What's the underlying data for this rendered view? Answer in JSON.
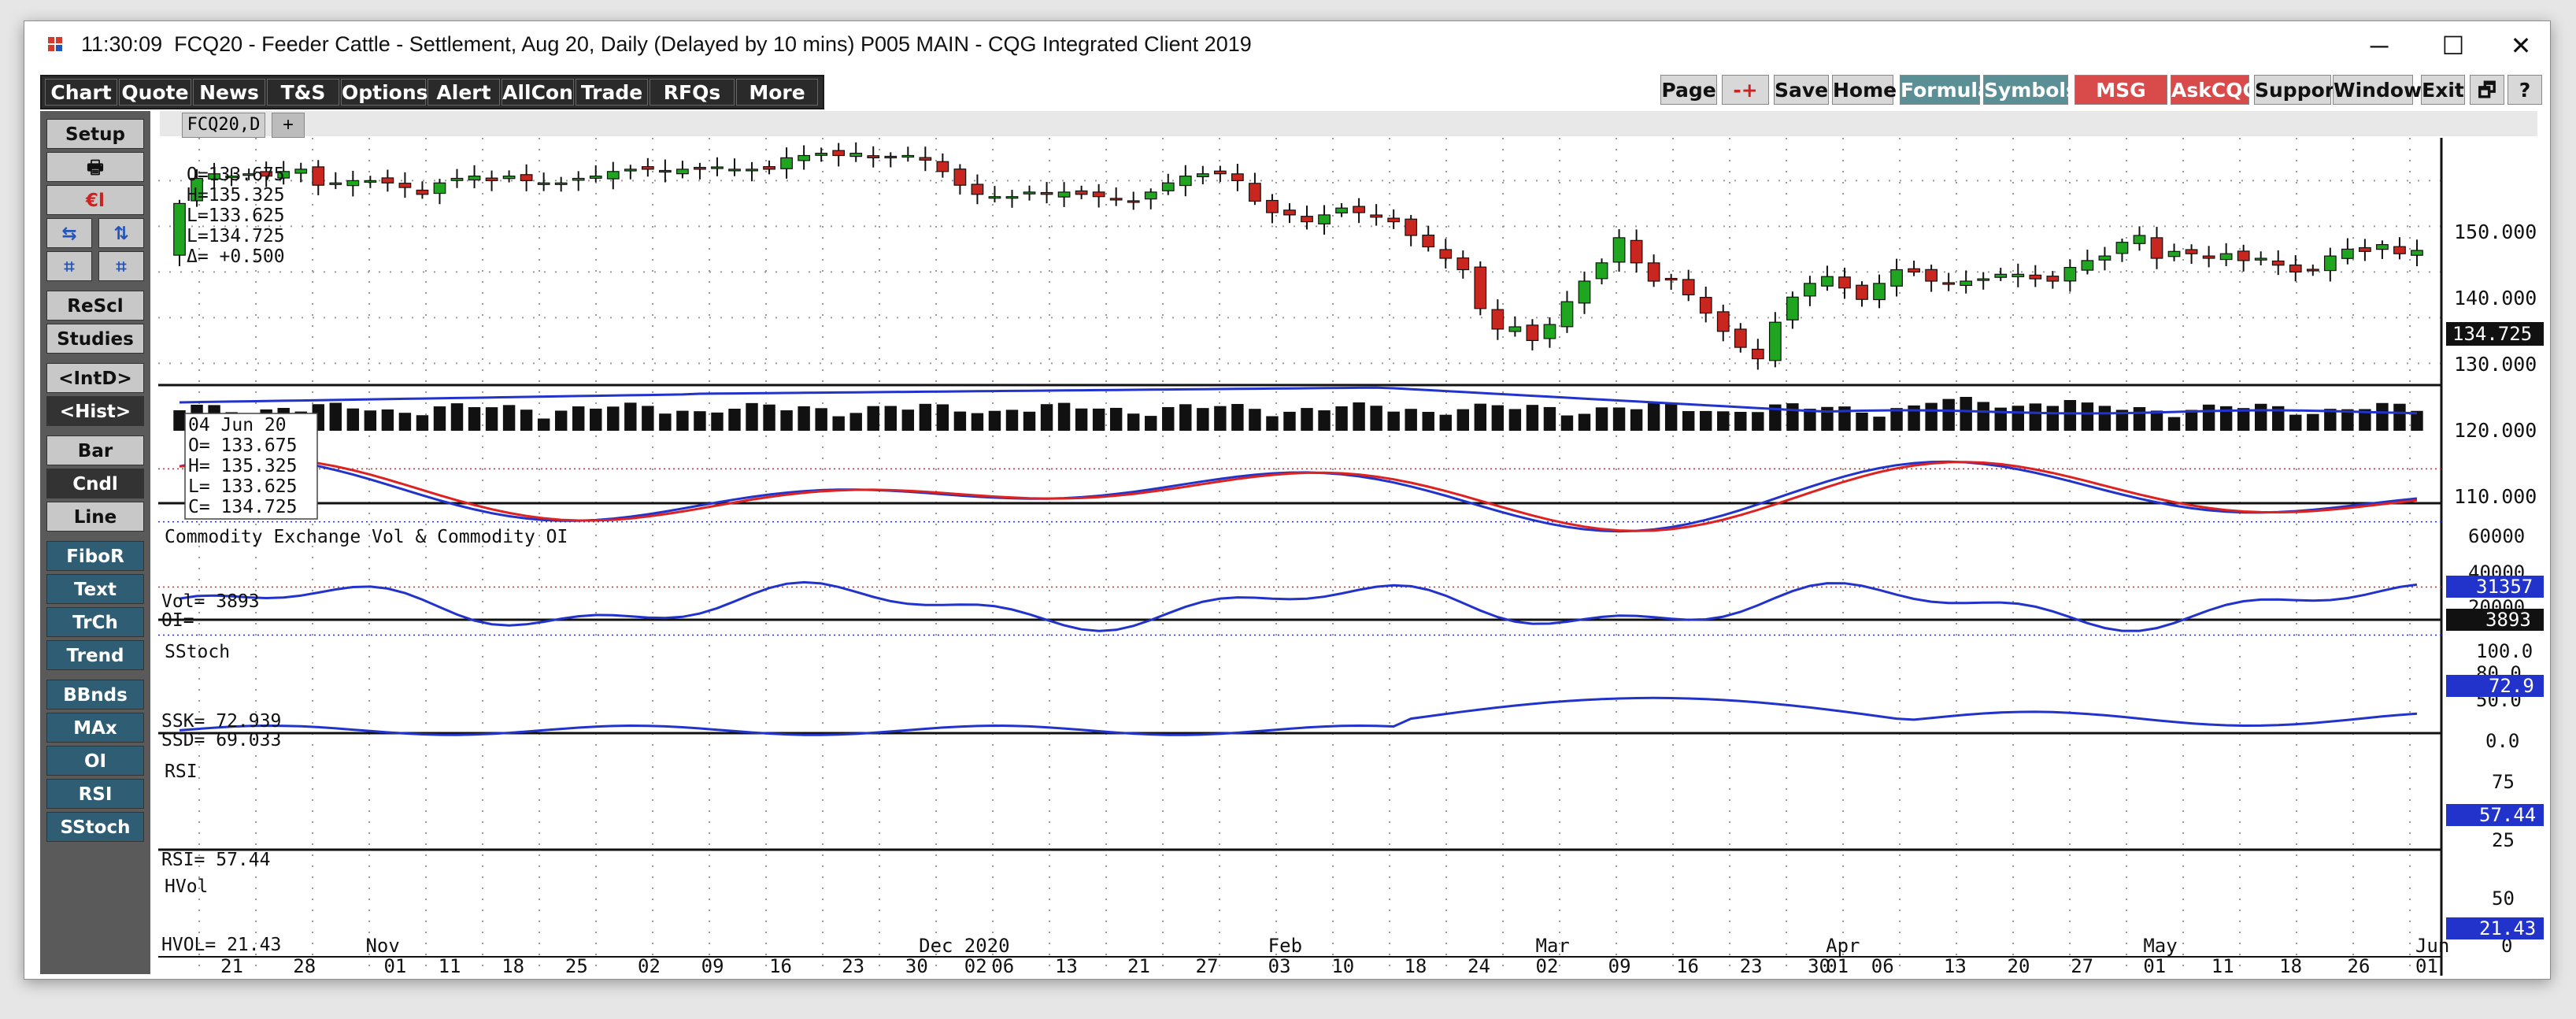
{
  "window": {
    "time": "11:30:09",
    "title": "FCQ20 - Feeder Cattle - Settlement, Aug 20, Daily (Delayed by 10 mins)   P005 MAIN - CQG Integrated Client 2019",
    "minimize": "─",
    "maximize": "☐",
    "close": "✕"
  },
  "toolbar_left": [
    "Chart",
    "Quote",
    "News",
    "T&S",
    "Options",
    "Alert",
    "AllCon",
    "Trade",
    "RFQs",
    "More"
  ],
  "toolbar_right": {
    "page": "Page",
    "arrows": "-+",
    "save": "Save",
    "home": "Home",
    "formula": "Formula",
    "symbols": "Symbols",
    "msg": "MSG Cntr",
    "askcqg": "AskCQG",
    "support": "Support",
    "window": "Window",
    "exit": "Exit",
    "restore": "🗗",
    "help": "?"
  },
  "left_panel": {
    "setup": "Setup",
    "print": "🖶",
    "export": "€l",
    "rescl": "ReScl",
    "studies": "Studies",
    "intd": "<IntD>",
    "hist": "<Hist>",
    "bar": "Bar",
    "cndl": "Cndl",
    "line": "Line",
    "fibor": "FiboR",
    "text": "Text",
    "trch": "TrCh",
    "trend": "Trend",
    "bbnds": "BBnds",
    "max": "MAx",
    "oi": "OI",
    "rsi": "RSI",
    "sstoch": "SStoch"
  },
  "tab": {
    "label": "FCQ20,D",
    "plus": "+"
  },
  "ohlc_top": [
    "O=133.675",
    "H=135.325",
    "L=133.625",
    "L=134.725",
    "Δ= +0.500"
  ],
  "ohlc_box": [
    "04 Jun 20",
    "O=  133.675",
    "H=  135.325",
    "L=  133.625",
    "C=  134.725"
  ],
  "price_axis": [
    "150.000",
    "140.000",
    "130.000",
    "120.000",
    "110.000"
  ],
  "last_price": "134.725",
  "vol_panel": {
    "title": "Commodity Exchange Vol & Commodity OI",
    "vol": "Vol=      3893",
    "oi": "OI=",
    "axis": [
      "60000",
      "40000",
      "20000"
    ],
    "oi_value": "31357",
    "vol_value": "3893"
  },
  "stoch_panel": {
    "title": "SStoch",
    "ssk": "SSK=     72.939",
    "ssd": "SSD=     69.033",
    "axis": [
      "100.0",
      "80.0",
      "50.0",
      "0.0"
    ],
    "value": "72.9"
  },
  "rsi_panel": {
    "title": "RSI",
    "label": "RSI=   57.44",
    "axis": [
      "75",
      "25"
    ],
    "value": "57.44"
  },
  "hvol_panel": {
    "title": "HVol",
    "label": "HVOL=   21.43",
    "axis": [
      "50",
      "0"
    ],
    "value": "21.43"
  },
  "date_months": [
    "Nov",
    "Dec",
    "2020",
    "Feb",
    "Mar",
    "Apr",
    "May",
    "Jun"
  ],
  "date_days": [
    "21",
    "28",
    "01",
    "11",
    "18",
    "25",
    "02",
    "09",
    "16",
    "23",
    "30",
    "02",
    "06",
    "13",
    "21",
    "27",
    "03",
    "10",
    "18",
    "24",
    "02",
    "09",
    "16",
    "23",
    "30",
    "01",
    "06",
    "13",
    "20",
    "27",
    "01",
    "11",
    "18",
    "26",
    "01"
  ],
  "colors": {
    "up": "#1fa51f",
    "down": "#c8261e",
    "line_blue": "#2233cc",
    "line_red": "#dd2222",
    "bg": "#ffffff",
    "toolbar": "#2c2c2c"
  },
  "chart_data": {
    "type": "candlestick",
    "symbol": "FCQ20",
    "ylim": [
      108,
      158
    ],
    "closes": [
      145.0,
      150.5,
      151.5,
      151.0,
      151.5,
      151.0,
      152.0,
      152.5,
      149.0,
      149.5,
      150.0,
      150.0,
      149.5,
      148.5,
      147.0,
      149.5,
      150.5,
      151.0,
      150.0,
      151.0,
      150.0,
      149.5,
      149.5,
      150.5,
      151.0,
      152.0,
      152.5,
      152.5,
      152.0,
      152.5,
      152.5,
      153.0,
      152.5,
      152.5,
      152.5,
      155.0,
      155.5,
      156.0,
      155.5,
      156.0,
      155.0,
      155.0,
      155.5,
      154.5,
      152.0,
      149.0,
      147.0,
      146.5,
      146.5,
      147.5,
      147.0,
      147.5,
      147.0,
      146.5,
      146.0,
      145.5,
      147.5,
      149.5,
      151.0,
      151.5,
      151.5,
      150.0,
      145.5,
      143.0,
      142.5,
      141.0,
      142.5,
      144.0,
      143.0,
      142.0,
      141.0,
      138.0,
      135.5,
      133.0,
      130.5,
      122.0,
      117.5,
      118.0,
      115.0,
      118.5,
      123.5,
      128.0,
      132.0,
      137.5,
      132.0,
      128.0,
      128.5,
      125.0,
      121.0,
      117.0,
      113.5,
      111.0,
      119.0,
      124.5,
      127.5,
      129.0,
      126.5,
      124.0,
      127.5,
      130.5,
      130.0,
      128.0,
      127.5,
      128.0,
      128.5,
      129.5,
      129.5,
      128.5,
      128.0,
      131.0,
      132.5,
      133.5,
      136.5,
      138.0,
      133.0,
      134.5,
      134.0,
      133.0,
      134.0,
      132.5,
      133.0,
      131.5,
      130.0,
      130.5,
      133.5,
      135.0,
      134.5,
      136.0,
      134.0,
      134.725
    ],
    "series": [
      {
        "name": "Vol",
        "last": 3893
      },
      {
        "name": "OI",
        "last": 31357
      },
      {
        "name": "SSK",
        "last": 72.939
      },
      {
        "name": "SSD",
        "last": 69.033
      },
      {
        "name": "RSI",
        "last": 57.44
      },
      {
        "name": "HVOL",
        "last": 21.43
      }
    ]
  }
}
